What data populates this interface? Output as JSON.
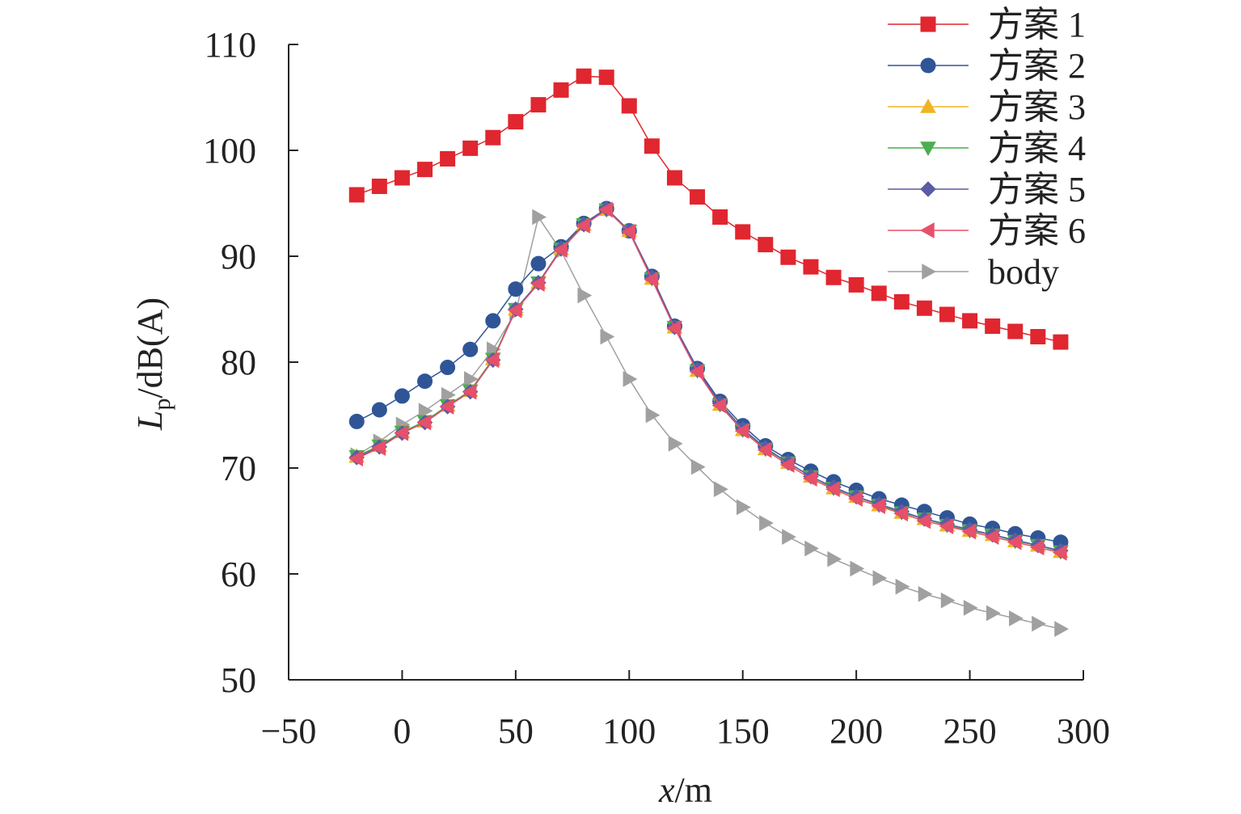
{
  "chart_data": {
    "type": "line",
    "title": "",
    "xlabel": "x/m",
    "xlabel_var": "x",
    "xlabel_unit": "/m",
    "ylabel": "Lp/dB(A)",
    "ylabel_var": "L",
    "ylabel_sub": "p",
    "ylabel_unit": "/dB(A)",
    "xlim": [
      -50,
      300
    ],
    "ylim": [
      50,
      110
    ],
    "xticks": [
      -50,
      0,
      50,
      100,
      150,
      200,
      250,
      300
    ],
    "xtick_labels": [
      "−50",
      "0",
      "50",
      "100",
      "150",
      "200",
      "250",
      "300"
    ],
    "yticks": [
      50,
      60,
      70,
      80,
      90,
      100,
      110
    ],
    "ytick_labels": [
      "50",
      "60",
      "70",
      "80",
      "90",
      "100",
      "110"
    ],
    "grid": false,
    "legend_position": "top-right",
    "x": [
      -20,
      -10,
      0,
      10,
      20,
      30,
      40,
      50,
      60,
      70,
      80,
      90,
      100,
      110,
      120,
      130,
      140,
      150,
      160,
      170,
      180,
      190,
      200,
      210,
      220,
      230,
      240,
      250,
      260,
      270,
      280,
      290
    ],
    "series": [
      {
        "name": "方案 1",
        "color": "#e0262f",
        "marker": "square",
        "values": [
          95.8,
          96.6,
          97.4,
          98.2,
          99.2,
          100.2,
          101.2,
          102.7,
          104.3,
          105.7,
          107.0,
          106.9,
          104.2,
          100.4,
          97.4,
          95.6,
          93.7,
          92.3,
          91.1,
          89.9,
          89.0,
          88.0,
          87.3,
          86.5,
          85.7,
          85.1,
          84.5,
          83.9,
          83.4,
          82.9,
          82.4,
          81.9
        ]
      },
      {
        "name": "方案 2",
        "color": "#2f5597",
        "marker": "circle",
        "values": [
          74.4,
          75.5,
          76.8,
          78.2,
          79.5,
          81.2,
          83.9,
          86.9,
          89.3,
          90.9,
          93.1,
          94.5,
          92.4,
          88.1,
          83.4,
          79.4,
          76.3,
          74.0,
          72.1,
          70.8,
          69.7,
          68.7,
          67.9,
          67.1,
          66.5,
          65.9,
          65.3,
          64.7,
          64.3,
          63.8,
          63.4,
          63.0
        ]
      },
      {
        "name": "方案 3",
        "color": "#f0b323",
        "marker": "triangle-up",
        "values": [
          71.1,
          72.1,
          73.4,
          74.4,
          75.9,
          77.3,
          80.3,
          85.0,
          87.5,
          90.7,
          93.0,
          94.4,
          92.4,
          87.9,
          83.3,
          79.2,
          76.0,
          73.6,
          71.8,
          70.5,
          69.2,
          68.1,
          67.3,
          66.5,
          65.8,
          65.2,
          64.6,
          64.1,
          63.7,
          63.1,
          62.7,
          62.1
        ]
      },
      {
        "name": "方案 4",
        "color": "#4cae50",
        "marker": "triangle-down",
        "values": [
          71.1,
          72.1,
          73.4,
          74.4,
          75.9,
          77.3,
          80.3,
          85.0,
          87.5,
          90.7,
          93.0,
          94.4,
          92.4,
          87.9,
          83.3,
          79.2,
          76.0,
          73.6,
          71.8,
          70.5,
          69.2,
          68.1,
          67.3,
          66.5,
          65.8,
          65.2,
          64.6,
          64.1,
          63.7,
          63.1,
          62.7,
          62.1
        ]
      },
      {
        "name": "方案 5",
        "color": "#5a5ca6",
        "marker": "diamond",
        "values": [
          71.0,
          72.0,
          73.3,
          74.3,
          75.8,
          77.2,
          80.2,
          85.0,
          87.5,
          90.7,
          93.0,
          94.5,
          92.4,
          88.0,
          83.3,
          79.3,
          76.1,
          73.7,
          71.9,
          70.5,
          69.2,
          68.2,
          67.3,
          66.6,
          65.9,
          65.2,
          64.7,
          64.2,
          63.7,
          63.2,
          62.7,
          62.2
        ]
      },
      {
        "name": "方案 6",
        "color": "#e6506a",
        "marker": "triangle-left",
        "values": [
          70.9,
          71.9,
          73.3,
          74.3,
          75.8,
          77.2,
          80.2,
          84.9,
          87.4,
          90.6,
          92.9,
          94.4,
          92.3,
          87.8,
          83.2,
          79.1,
          75.9,
          73.5,
          71.7,
          70.3,
          69.0,
          68.0,
          67.1,
          66.4,
          65.7,
          65.0,
          64.5,
          64.0,
          63.5,
          63.0,
          62.5,
          62.0
        ]
      },
      {
        "name": "body",
        "color": "#a0a0a0",
        "marker": "triangle-right",
        "values": [
          71.2,
          72.5,
          74.1,
          75.4,
          76.9,
          78.4,
          81.2,
          84.7,
          93.7,
          90.5,
          86.3,
          82.4,
          78.4,
          75.0,
          72.3,
          70.1,
          68.0,
          66.3,
          64.8,
          63.5,
          62.4,
          61.4,
          60.5,
          59.6,
          58.8,
          58.1,
          57.5,
          56.8,
          56.3,
          55.8,
          55.3,
          54.8
        ]
      }
    ]
  }
}
